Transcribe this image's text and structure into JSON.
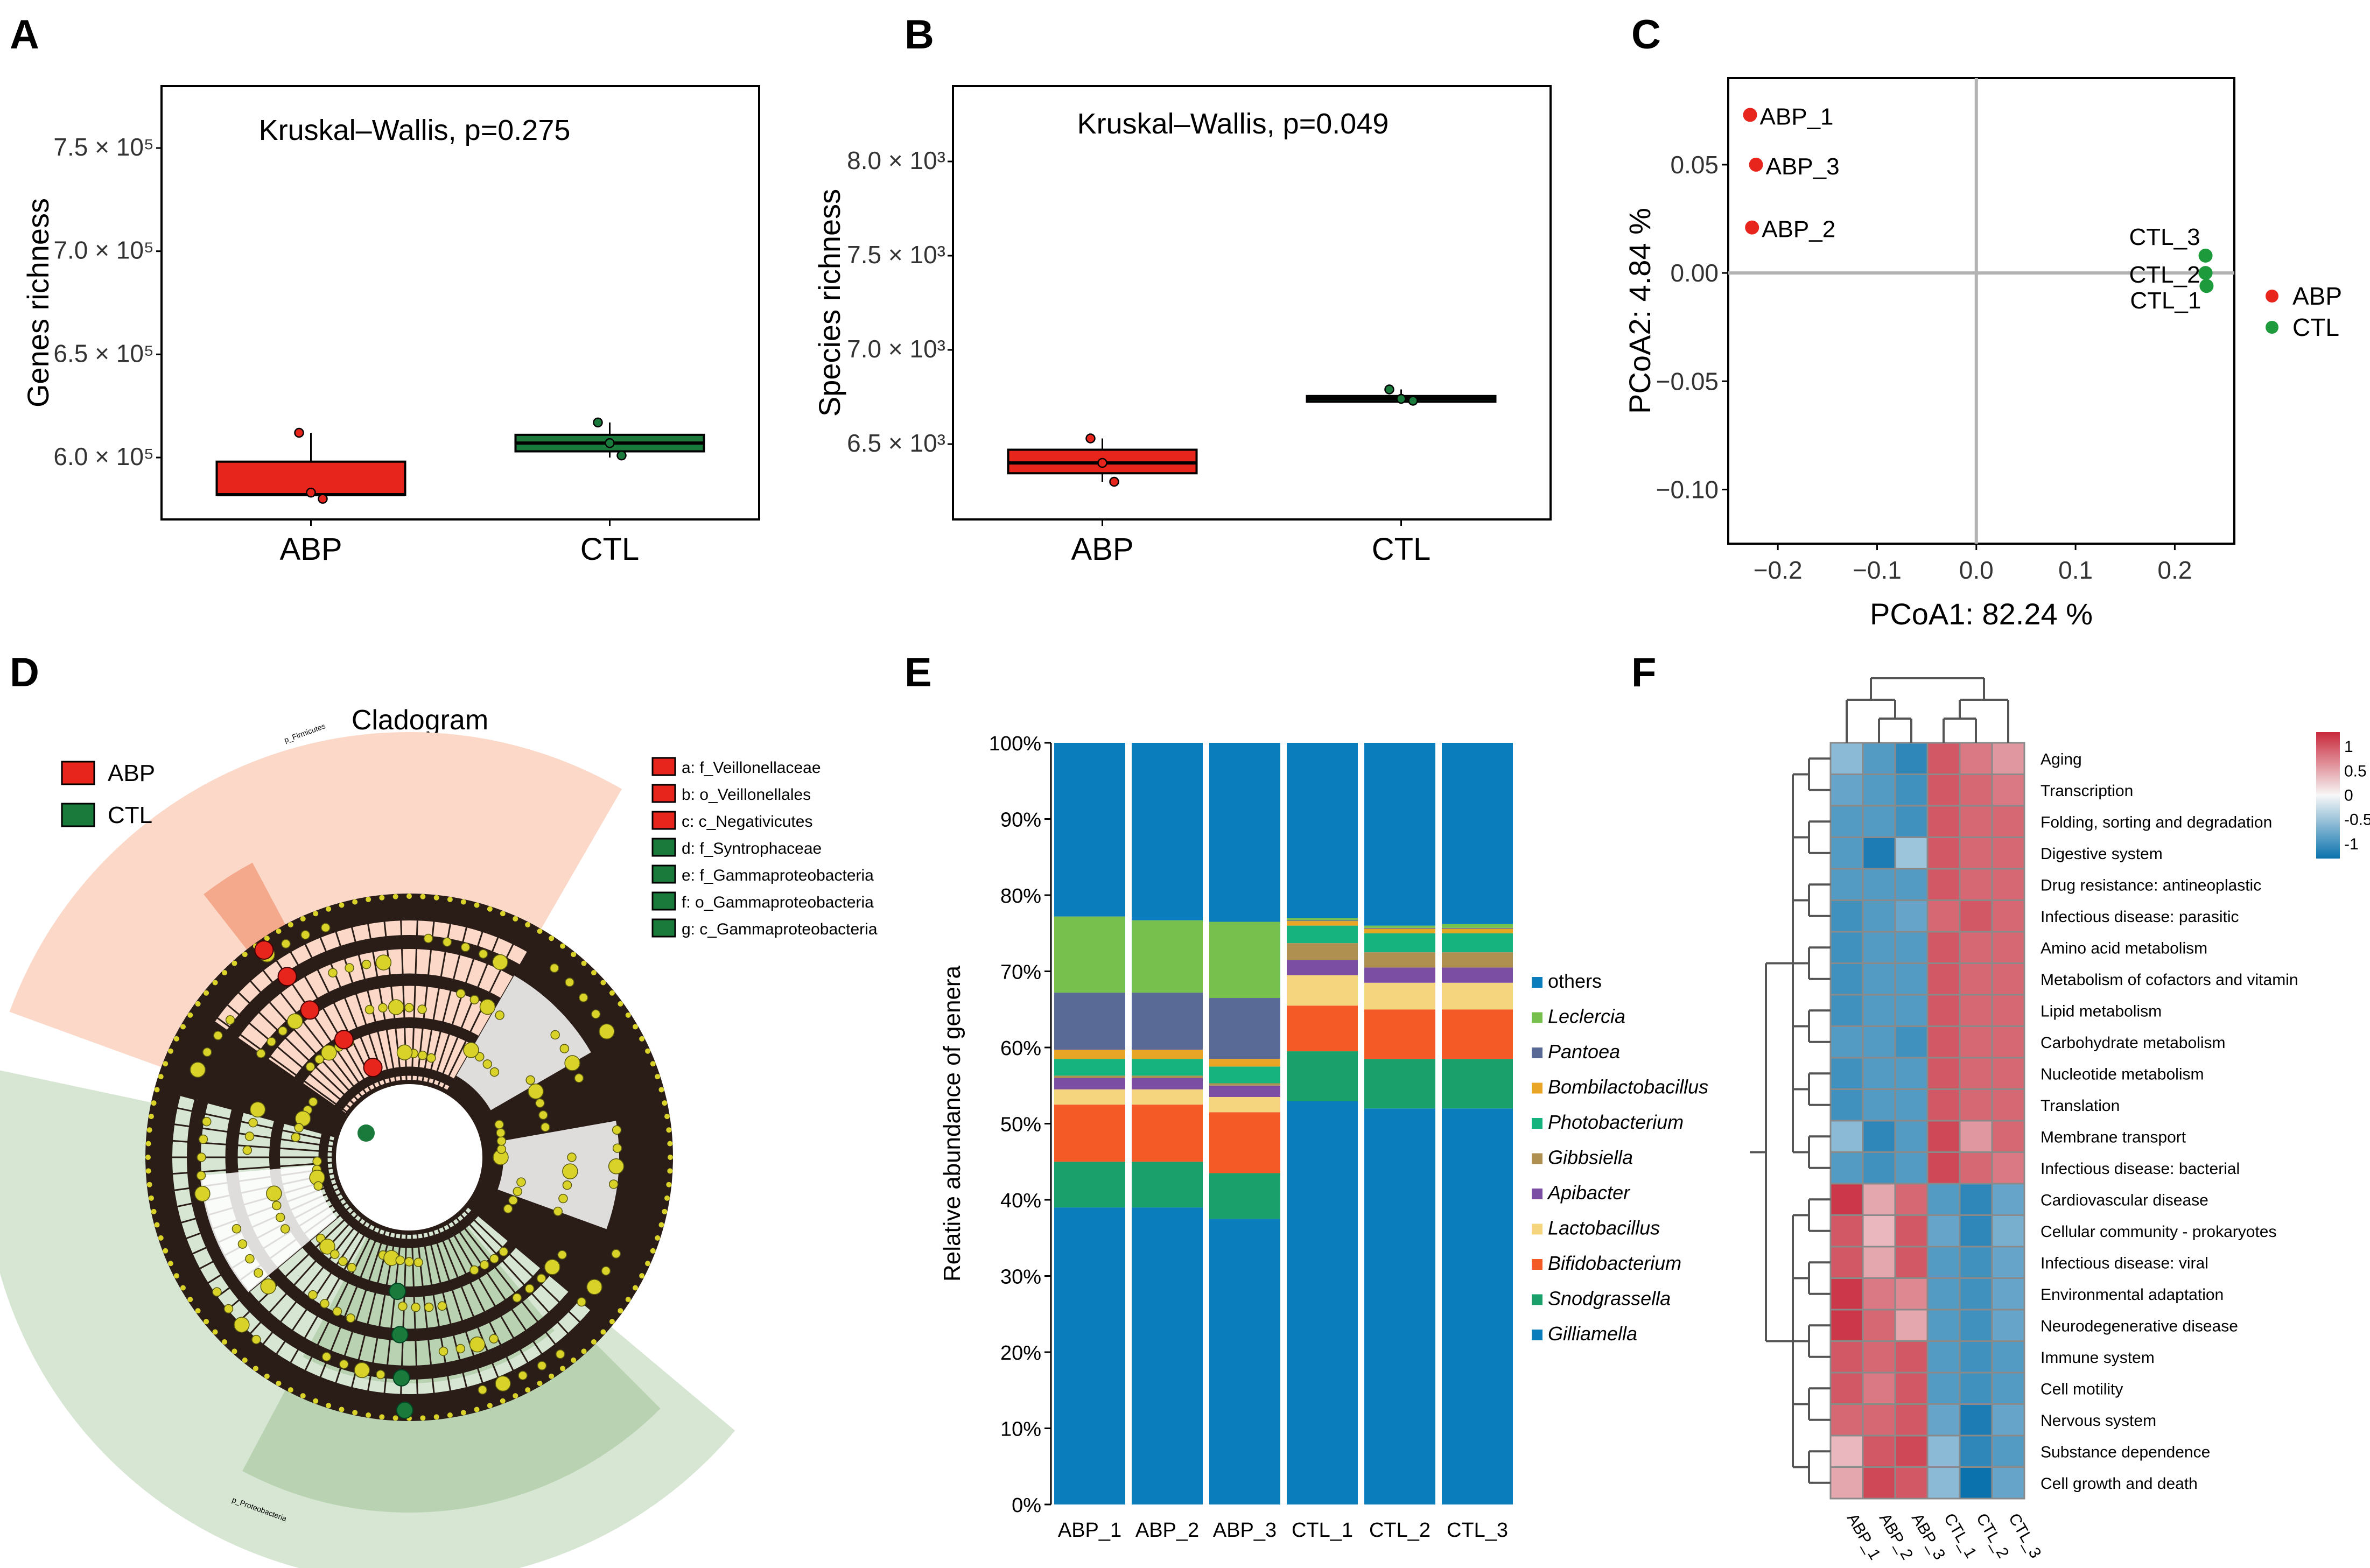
{
  "panel_labels": [
    "A",
    "B",
    "C",
    "D",
    "E",
    "F"
  ],
  "chart_data": [
    {
      "panel": "A",
      "type": "box",
      "annotation": "Kruskal–Wallis, p=0.275",
      "ylabel": "Genes richness",
      "ylim": [
        570000,
        780000
      ],
      "yticks": [
        600000,
        650000,
        700000,
        750000
      ],
      "ytick_labels": [
        "6.0 × 10⁵",
        "6.5 × 10⁵",
        "7.0 × 10⁵",
        "7.5 × 10⁵"
      ],
      "categories": [
        "ABP",
        "CTL"
      ],
      "colors": [
        "#e8251c",
        "#1a7a3c"
      ],
      "boxes": [
        {
          "group": "ABP",
          "q1": 582000,
          "median": 582000,
          "q3": 598000,
          "low": 582000,
          "high": 612000,
          "points": [
            612000,
            583000,
            580000
          ]
        },
        {
          "group": "CTL",
          "q1": 603000,
          "median": 607000,
          "q3": 611000,
          "low": 600000,
          "high": 617000,
          "points": [
            617000,
            607000,
            601000
          ]
        }
      ]
    },
    {
      "panel": "B",
      "type": "box",
      "annotation": "Kruskal–Wallis, p=0.049",
      "ylabel": "Species richness",
      "ylim": [
        6100,
        8400
      ],
      "yticks": [
        6500,
        7000,
        7500,
        8000
      ],
      "ytick_labels": [
        "6.5 × 10³",
        "7.0 × 10³",
        "7.5 × 10³",
        "8.0 × 10³"
      ],
      "categories": [
        "ABP",
        "CTL"
      ],
      "colors": [
        "#e8251c",
        "#1a7a3c"
      ],
      "boxes": [
        {
          "group": "ABP",
          "q1": 6345,
          "median": 6400,
          "q3": 6470,
          "low": 6300,
          "high": 6530,
          "points": [
            6530,
            6400,
            6300
          ]
        },
        {
          "group": "CTL",
          "q1": 6725,
          "median": 6740,
          "q3": 6755,
          "low": 6720,
          "high": 6790,
          "points": [
            6790,
            6740,
            6730
          ]
        }
      ]
    },
    {
      "panel": "C",
      "type": "scatter",
      "xlabel": "PCoA1:  82.24 %",
      "ylabel": "PCoA2:  4.84 %",
      "xlim": [
        -0.25,
        0.26
      ],
      "ylim": [
        -0.125,
        0.09
      ],
      "xticks": [
        -0.2,
        -0.1,
        0.0,
        0.1,
        0.2
      ],
      "xtick_labels": [
        "−0.2",
        "−0.1",
        "0.0",
        "0.1",
        "0.2"
      ],
      "yticks": [
        0.05,
        0.0,
        -0.05,
        -0.1
      ],
      "ytick_labels": [
        "0.05",
        "0.00",
        "−0.05",
        "−0.10"
      ],
      "legend": [
        {
          "name": "ABP",
          "color": "#e8251c"
        },
        {
          "name": "CTL",
          "color": "#1d9a3c"
        }
      ],
      "points": [
        {
          "label": "ABP_1",
          "group": "ABP",
          "x": -0.228,
          "y": 0.073
        },
        {
          "label": "ABP_3",
          "group": "ABP",
          "x": -0.222,
          "y": 0.05
        },
        {
          "label": "ABP_2",
          "group": "ABP",
          "x": -0.226,
          "y": 0.021
        },
        {
          "label": "CTL_3",
          "group": "CTL",
          "x": 0.231,
          "y": 0.008
        },
        {
          "label": "CTL_2",
          "group": "CTL",
          "x": 0.231,
          "y": 0.0
        },
        {
          "label": "CTL_1",
          "group": "CTL",
          "x": 0.232,
          "y": -0.006
        }
      ]
    },
    {
      "panel": "D",
      "type": "cladogram",
      "title": "Cladogram",
      "legend": [
        {
          "name": "ABP",
          "color": "#e8251c"
        },
        {
          "name": "CTL",
          "color": "#1a7a3c"
        }
      ],
      "key": [
        {
          "text": "a: f_Veillonellaceae",
          "group": "ABP"
        },
        {
          "text": "b: o_Veillonellales",
          "group": "ABP"
        },
        {
          "text": "c: c_Negativicutes",
          "group": "ABP"
        },
        {
          "text": "d: f_Syntrophaceae",
          "group": "CTL"
        },
        {
          "text": "e: f_Gammaproteobacteria",
          "group": "CTL"
        },
        {
          "text": "f:  o_Gammaproteobacteria",
          "group": "CTL"
        },
        {
          "text": "g: c_Gammaproteobacteria",
          "group": "CTL"
        }
      ],
      "clade_labels": [
        "p_Firmicutes",
        "p_Proteobacteria"
      ]
    },
    {
      "panel": "E",
      "type": "stacked_bar",
      "ylabel": "Relative abundance of genera",
      "ylim": [
        0,
        100
      ],
      "yticks": [
        0,
        10,
        20,
        30,
        40,
        50,
        60,
        70,
        80,
        90,
        100
      ],
      "ytick_labels": [
        "0%",
        "10%",
        "20%",
        "30%",
        "40%",
        "50%",
        "60%",
        "70%",
        "80%",
        "90%",
        "100%"
      ],
      "categories": [
        "ABP_1",
        "ABP_2",
        "ABP_3",
        "CTL_1",
        "CTL_2",
        "CTL_3"
      ],
      "series": [
        {
          "name": "Gilliamella",
          "color": "#0a7dbd",
          "values": [
            39.0,
            39.0,
            37.5,
            53.0,
            52.0,
            52.0
          ]
        },
        {
          "name": "Snodgrassella",
          "color": "#1aa06a",
          "values": [
            6.0,
            6.0,
            6.0,
            6.5,
            6.5,
            6.5
          ]
        },
        {
          "name": "Bifidobacterium",
          "color": "#f45a25",
          "values": [
            7.5,
            7.5,
            8.0,
            6.0,
            6.5,
            6.5
          ]
        },
        {
          "name": "Lactobacillus",
          "color": "#f5d57e",
          "values": [
            2.0,
            2.0,
            2.0,
            4.0,
            3.5,
            3.5
          ]
        },
        {
          "name": "Apibacter",
          "color": "#7b4ea3",
          "values": [
            1.5,
            1.5,
            1.5,
            2.0,
            2.0,
            2.0
          ]
        },
        {
          "name": "Gibbsiella",
          "color": "#b09050",
          "values": [
            0.3,
            0.3,
            0.3,
            2.2,
            2.0,
            2.0
          ]
        },
        {
          "name": "Photobacterium",
          "color": "#16b37e",
          "values": [
            2.2,
            2.2,
            2.2,
            2.3,
            2.5,
            2.5
          ]
        },
        {
          "name": "Bombilactobacillus",
          "color": "#e9a526",
          "values": [
            1.2,
            1.2,
            1.0,
            0.6,
            0.6,
            0.6
          ]
        },
        {
          "name": "Pantoea",
          "color": "#5a6a96",
          "values": [
            7.5,
            7.5,
            8.0,
            0.1,
            0.1,
            0.1
          ]
        },
        {
          "name": "Leclercia",
          "color": "#78c04e",
          "values": [
            10.0,
            9.5,
            10.0,
            0.3,
            0.3,
            0.5
          ]
        },
        {
          "name": "others",
          "color": "#0a7dbd",
          "values": [
            22.8,
            23.3,
            23.5,
            23.0,
            24.0,
            23.8
          ]
        }
      ],
      "legend_order": [
        "others",
        "Leclercia",
        "Pantoea",
        "Bombilactobacillus",
        "Photobacterium",
        "Gibbsiella",
        "Apibacter",
        "Lactobacillus",
        "Bifidobacterium",
        "Snodgrassella",
        "Gilliamella"
      ]
    },
    {
      "panel": "F",
      "type": "heatmap",
      "columns": [
        "ABP_1",
        "ABP_2",
        "ABP_3",
        "CTL_1",
        "CTL_2",
        "CTL_3"
      ],
      "rows": [
        "Aging",
        "Transcription",
        "Folding, sorting and degradation",
        "Digestive system",
        "Drug resistance: antineoplastic",
        "Infectious disease: parasitic",
        "Amino acid metabolism",
        "Metabolism of cofactors and vitamin",
        "Lipid metabolism",
        "Carbohydrate metabolism",
        "Nucleotide metabolism",
        "Translation",
        "Membrane transport",
        "Infectious disease: bacterial",
        "Cardiovascular disease",
        "Cellular community - prokaryotes",
        "Infectious disease: viral",
        "Environmental adaptation",
        "Neurodegenerative disease",
        "Immune system",
        "Cell motility",
        "Nervous system",
        "Substance dependence",
        "Cell growth and death"
      ],
      "values": [
        [
          -0.6,
          -0.9,
          -1.1,
          1.0,
          0.8,
          0.6
        ],
        [
          -0.8,
          -0.9,
          -1.0,
          1.0,
          0.9,
          0.8
        ],
        [
          -0.9,
          -0.9,
          -1.0,
          1.0,
          0.9,
          0.9
        ],
        [
          -0.9,
          -1.2,
          -0.5,
          1.0,
          0.9,
          0.9
        ],
        [
          -0.9,
          -0.9,
          -0.9,
          1.0,
          0.9,
          0.9
        ],
        [
          -1.0,
          -0.9,
          -0.8,
          0.9,
          1.0,
          0.9
        ],
        [
          -1.0,
          -0.9,
          -0.9,
          1.0,
          0.9,
          0.9
        ],
        [
          -1.0,
          -0.9,
          -0.9,
          1.0,
          0.9,
          0.9
        ],
        [
          -1.0,
          -0.9,
          -0.9,
          1.0,
          0.9,
          0.9
        ],
        [
          -0.9,
          -0.9,
          -1.0,
          1.0,
          0.9,
          0.9
        ],
        [
          -1.0,
          -0.9,
          -0.9,
          1.0,
          0.9,
          0.9
        ],
        [
          -1.0,
          -0.9,
          -0.9,
          1.0,
          0.9,
          0.9
        ],
        [
          -0.6,
          -1.1,
          -0.9,
          1.1,
          0.6,
          0.9
        ],
        [
          -0.9,
          -1.0,
          -0.9,
          1.1,
          0.9,
          0.8
        ],
        [
          1.2,
          0.5,
          0.9,
          -0.9,
          -1.1,
          -0.8
        ],
        [
          1.0,
          0.4,
          1.0,
          -0.8,
          -1.1,
          -0.7
        ],
        [
          1.0,
          0.5,
          1.0,
          -0.9,
          -1.0,
          -0.8
        ],
        [
          1.2,
          0.8,
          0.7,
          -0.9,
          -1.0,
          -0.8
        ],
        [
          1.2,
          0.9,
          0.5,
          -0.9,
          -1.0,
          -0.8
        ],
        [
          1.0,
          0.9,
          1.0,
          -0.9,
          -1.0,
          -0.9
        ],
        [
          1.0,
          0.8,
          1.0,
          -0.9,
          -1.0,
          -0.9
        ],
        [
          0.9,
          0.9,
          1.0,
          -0.8,
          -1.2,
          -0.8
        ],
        [
          0.4,
          1.0,
          1.1,
          -0.6,
          -1.1,
          -0.9
        ],
        [
          0.5,
          1.1,
          1.0,
          -0.6,
          -1.3,
          -0.8
        ]
      ],
      "scale_labels": [
        "1",
        "0.5",
        "0",
        "-0.5",
        "-1"
      ],
      "scale_values": [
        1,
        0.5,
        0,
        -0.5,
        -1
      ]
    }
  ]
}
